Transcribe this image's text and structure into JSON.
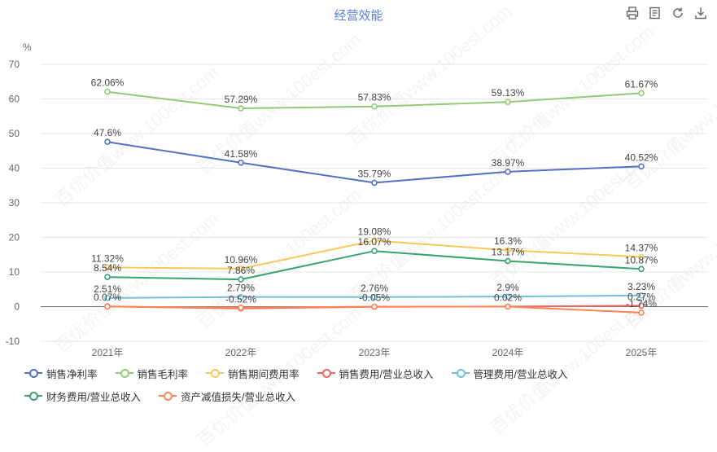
{
  "toolbar": {
    "items": [
      {
        "name": "print-icon",
        "glyph": "🖶"
      },
      {
        "name": "data-view-icon",
        "glyph": "▤"
      },
      {
        "name": "refresh-icon",
        "glyph": "↻"
      },
      {
        "name": "download-icon",
        "glyph": "⤓"
      }
    ]
  },
  "watermark_text": "百优价值www.100est.com",
  "chart_data": {
    "type": "line",
    "title": "经营效能",
    "ylabel": "%",
    "xlabel": "",
    "categories": [
      "2021年",
      "2022年",
      "2023年",
      "2024年",
      "2025年"
    ],
    "ylim": [
      -10,
      70
    ],
    "yticks": [
      -10,
      0,
      10,
      20,
      30,
      40,
      50,
      60,
      70
    ],
    "grid": true,
    "legend_position": "bottom",
    "series": [
      {
        "name": "销售净利率",
        "color": "#5470c6",
        "values": [
          47.6,
          41.58,
          35.79,
          38.97,
          40.52
        ],
        "labels": [
          "47.6%",
          "41.58%",
          "35.79%",
          "38.97%",
          "40.52%"
        ]
      },
      {
        "name": "销售毛利率",
        "color": "#91cc75",
        "values": [
          62.06,
          57.29,
          57.83,
          59.13,
          61.67
        ],
        "labels": [
          "62.06%",
          "57.29%",
          "57.83%",
          "59.13%",
          "61.67%"
        ]
      },
      {
        "name": "销售期间费用率",
        "color": "#fac858",
        "values": [
          11.32,
          10.96,
          19.08,
          16.3,
          14.37
        ],
        "labels": [
          "11.32%",
          "10.96%",
          "19.08%",
          "16.3%",
          "14.37%"
        ]
      },
      {
        "name": "销售费用/营业总收入",
        "color": "#ee6666",
        "values": [
          0.07,
          -0.52,
          -0.05,
          0.02,
          0.27
        ],
        "labels": [
          "0.07%",
          "-0.52%",
          "-0.05%",
          "0.02%",
          "0.27%"
        ]
      },
      {
        "name": "管理费用/营业总收入",
        "color": "#73c0de",
        "values": [
          2.51,
          2.79,
          2.76,
          2.9,
          3.23
        ],
        "labels": [
          "2.51%",
          "2.79%",
          "2.76%",
          "2.9%",
          "3.23%"
        ]
      },
      {
        "name": "财务费用/营业总收入",
        "color": "#3ba272",
        "values": [
          8.54,
          7.86,
          16.07,
          13.17,
          10.87
        ],
        "labels": [
          "8.54%",
          "7.86%",
          "16.07%",
          "13.17%",
          "10.87%"
        ]
      },
      {
        "name": "资产减值损失/营业总收入",
        "color": "#fc8452",
        "values": [
          0.0,
          -0.3,
          0.0,
          0.0,
          -1.74
        ],
        "labels": [
          "",
          "",
          "",
          "",
          "-1.74%"
        ]
      }
    ]
  }
}
